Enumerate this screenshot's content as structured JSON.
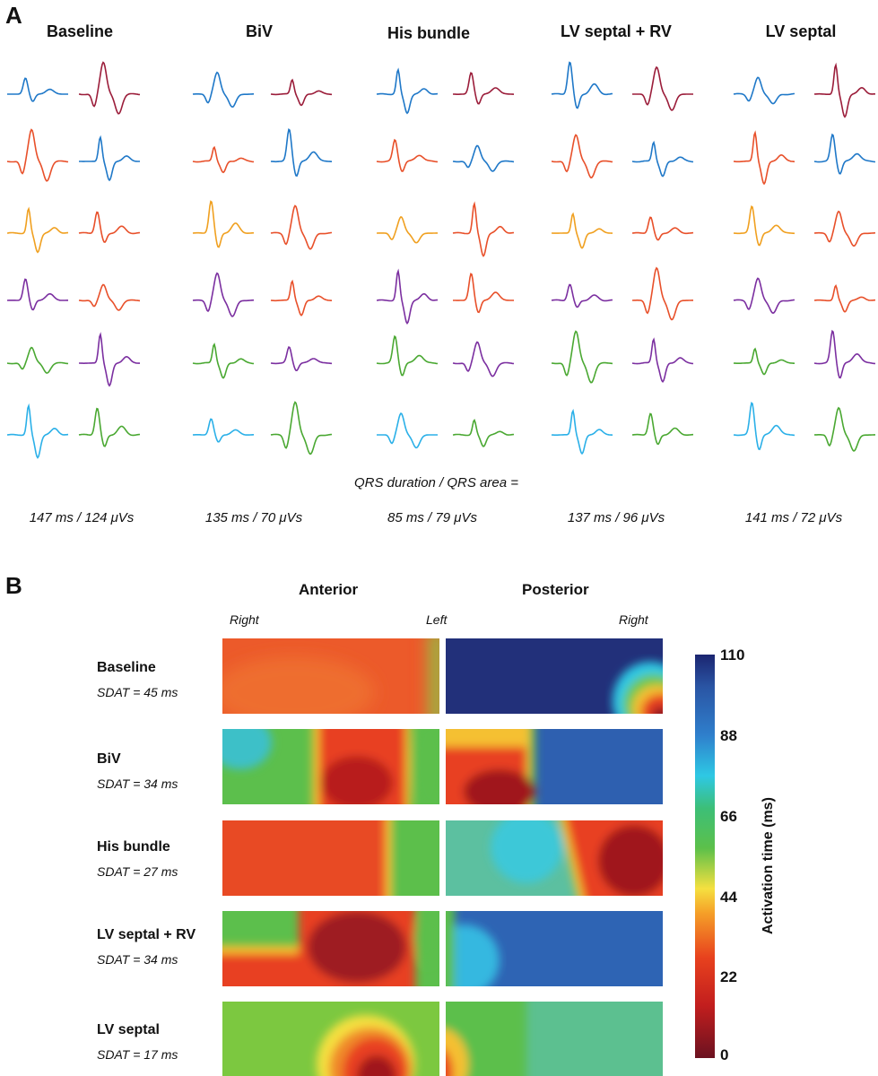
{
  "panel_a": {
    "letter": "A",
    "columns": [
      {
        "title": "Baseline",
        "metric": "147 ms / 124 μVs"
      },
      {
        "title": "BiV",
        "metric": "135 ms / 70 μVs"
      },
      {
        "title": "His bundle",
        "metric": "85 ms / 79 μVs"
      },
      {
        "title": "LV septal + RV",
        "metric": "137 ms / 96 μVs"
      },
      {
        "title": "LV septal",
        "metric": "141 ms / 72 μVs"
      }
    ],
    "qrs_label": "QRS duration / QRS area =",
    "trace_colors": [
      "#1f78c8",
      "#e8502a",
      "#f0a020",
      "#7b2fa0",
      "#4aa832",
      "#2bb0e8",
      "#9b1d3a"
    ]
  },
  "panel_b": {
    "letter": "B",
    "header_anterior": "Anterior",
    "header_posterior": "Posterior",
    "label_right_1": "Right",
    "label_left": "Left",
    "label_right_2": "Right",
    "rows": [
      {
        "title": "Baseline",
        "sdat": "SDAT = 45 ms"
      },
      {
        "title": "BiV",
        "sdat": "SDAT = 34 ms"
      },
      {
        "title": "His bundle",
        "sdat": "SDAT = 27 ms"
      },
      {
        "title": "LV septal + RV",
        "sdat": "SDAT = 34 ms"
      },
      {
        "title": "LV septal",
        "sdat": "SDAT = 17 ms"
      }
    ],
    "colorbar": {
      "title": "Activation time (ms)",
      "ticks": [
        "110",
        "88",
        "66",
        "44",
        "22",
        "0"
      ],
      "colors": [
        "#6b1220",
        "#d42a1e",
        "#f07a22",
        "#f5d23a",
        "#4cb84a",
        "#2ec3e0",
        "#2f6fb8",
        "#1b2a78"
      ]
    }
  }
}
